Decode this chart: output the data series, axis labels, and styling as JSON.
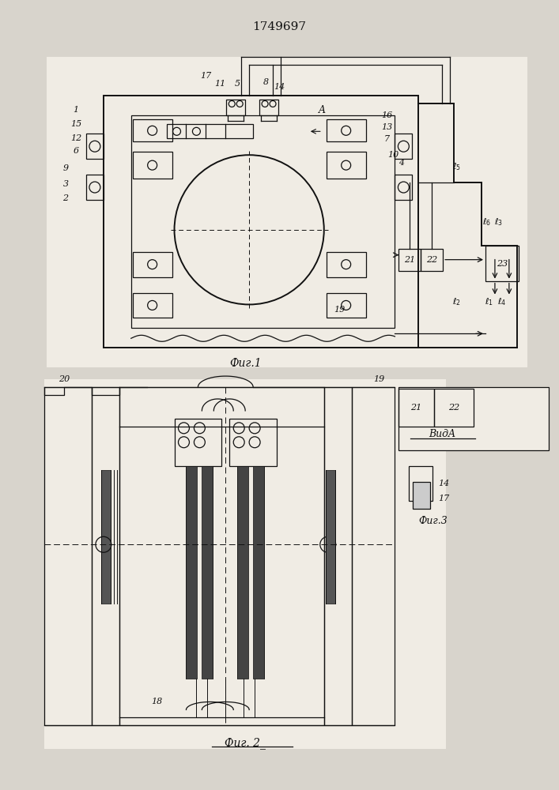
{
  "title": "1749697",
  "fig1_label": "Фиг.1",
  "fig2_label": "Фиг. 2_",
  "fig3_label": "Фиг.3",
  "vid_label": "ВидA",
  "bg_color": "#d8d4cc",
  "line_color": "#111111",
  "lw": 0.9,
  "lw_thick": 1.4
}
